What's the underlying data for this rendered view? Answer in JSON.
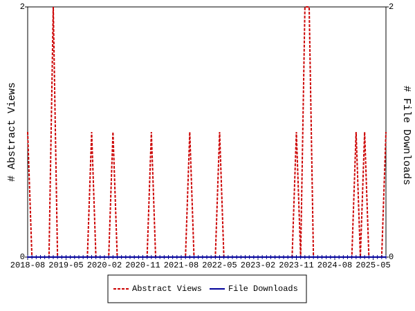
{
  "chart_data": {
    "type": "line",
    "y_label": "# Abstract Views",
    "y2_label": "# File Downloads",
    "categories": [
      "2018-08",
      null,
      null,
      null,
      null,
      null,
      null,
      null,
      null,
      "2019-05",
      null,
      null,
      null,
      null,
      null,
      null,
      null,
      null,
      "2020-02",
      null,
      null,
      null,
      null,
      null,
      null,
      null,
      null,
      "2020-11",
      null,
      null,
      null,
      null,
      null,
      null,
      null,
      null,
      "2021-08",
      null,
      null,
      null,
      null,
      null,
      null,
      null,
      null,
      "2022-05",
      null,
      null,
      null,
      null,
      null,
      null,
      null,
      null,
      "2023-02",
      null,
      null,
      null,
      null,
      null,
      null,
      null,
      null,
      "2023-11",
      null,
      null,
      null,
      null,
      null,
      null,
      null,
      null,
      "2024-08",
      null,
      null,
      null,
      null,
      null,
      null,
      null,
      null,
      "2025-05",
      null,
      null,
      null
    ],
    "series": [
      {
        "name": "Abstract Views",
        "color": "#cc0000",
        "dashed": true,
        "values": [
          1,
          0,
          0,
          0,
          0,
          0,
          2,
          0,
          0,
          0,
          0,
          0,
          0,
          0,
          0,
          1,
          0,
          0,
          0,
          0,
          1,
          0,
          0,
          0,
          0,
          0,
          0,
          0,
          0,
          1,
          0,
          0,
          0,
          0,
          0,
          0,
          0,
          0,
          1,
          0,
          0,
          0,
          0,
          0,
          0,
          1,
          0,
          0,
          0,
          0,
          0,
          0,
          0,
          0,
          0,
          0,
          0,
          0,
          0,
          0,
          0,
          0,
          0,
          1,
          0,
          2,
          2,
          0,
          0,
          0,
          0,
          0,
          0,
          0,
          0,
          0,
          0,
          1,
          0,
          1,
          0,
          0,
          0,
          0,
          1
        ]
      },
      {
        "name": "File Downloads",
        "color": "#000099",
        "axis": "y2",
        "dashed": false,
        "values": [
          0,
          0,
          0,
          0,
          0,
          0,
          0,
          0,
          0,
          0,
          0,
          0,
          0,
          0,
          0,
          0,
          0,
          0,
          0,
          0,
          0,
          0,
          0,
          0,
          0,
          0,
          0,
          0,
          0,
          0,
          0,
          0,
          0,
          0,
          0,
          0,
          0,
          0,
          0,
          0,
          0,
          0,
          0,
          0,
          0,
          0,
          0,
          0,
          0,
          0,
          0,
          0,
          0,
          0,
          0,
          0,
          0,
          0,
          0,
          0,
          0,
          0,
          0,
          0,
          0,
          0,
          0,
          0,
          0,
          0,
          0,
          0,
          0,
          0,
          0,
          0,
          0,
          0,
          0,
          0,
          0,
          0,
          0,
          0,
          0
        ]
      }
    ],
    "ylim": [
      0,
      2
    ],
    "yticks": [
      0,
      2
    ],
    "y2lim": [
      0,
      2
    ],
    "y2ticks": [
      0,
      2
    ],
    "legend": "bottom"
  }
}
